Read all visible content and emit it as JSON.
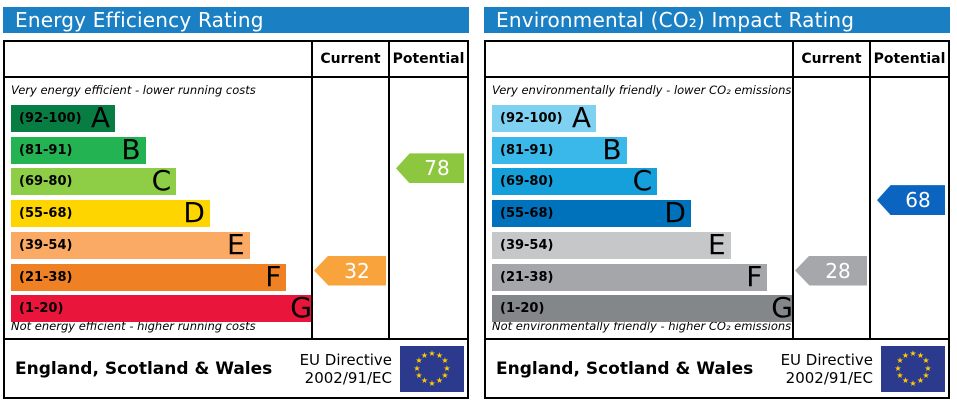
{
  "colors": {
    "header_bg": "#1b7fc4",
    "border": "#000000",
    "eu_flag_bg": "#2b3a8c",
    "eu_star": "#ffcc00",
    "arrow_text": "#ffffff"
  },
  "chart_data": [
    {
      "type": "bar",
      "title": "Energy Efficiency Rating",
      "column_headers": {
        "current": "Current",
        "potential": "Potential"
      },
      "top_note": "Very energy efficient - lower running costs",
      "bottom_note": "Not energy efficient - higher running costs",
      "bands": [
        {
          "letter": "A",
          "range_text": "(92-100)",
          "range": [
            92,
            100
          ],
          "color": "#077d44",
          "bar_width_pct": 34
        },
        {
          "letter": "B",
          "range_text": "(81-91)",
          "range": [
            81,
            91
          ],
          "color": "#24b352",
          "bar_width_pct": 44
        },
        {
          "letter": "C",
          "range_text": "(69-80)",
          "range": [
            69,
            80
          ],
          "color": "#8dce46",
          "bar_width_pct": 54
        },
        {
          "letter": "D",
          "range_text": "(55-68)",
          "range": [
            55,
            68
          ],
          "color": "#ffd500",
          "bar_width_pct": 65
        },
        {
          "letter": "E",
          "range_text": "(39-54)",
          "range": [
            39,
            54
          ],
          "color": "#fbaa65",
          "bar_width_pct": 78
        },
        {
          "letter": "F",
          "range_text": "(21-38)",
          "range": [
            21,
            38
          ],
          "color": "#ef8023",
          "bar_width_pct": 90
        },
        {
          "letter": "G",
          "range_text": "(1-20)",
          "range": [
            1,
            20
          ],
          "color": "#e9153b",
          "bar_width_pct": 100
        }
      ],
      "current": {
        "value": 32,
        "band": "F",
        "arrow_color": "#f8a33c"
      },
      "potential": {
        "value": 78,
        "band": "C",
        "arrow_color": "#8dc63f"
      },
      "footer": {
        "region": "England, Scotland & Wales",
        "directive_line1": "EU Directive",
        "directive_line2": "2002/91/EC"
      }
    },
    {
      "type": "bar",
      "title": "Environmental (CO₂) Impact Rating",
      "column_headers": {
        "current": "Current",
        "potential": "Potential"
      },
      "top_note": "Very environmentally friendly - lower CO₂ emissions",
      "bottom_note": "Not environmentally friendly - higher CO₂ emissions",
      "bands": [
        {
          "letter": "A",
          "range_text": "(92-100)",
          "range": [
            92,
            100
          ],
          "color": "#7fd1f1",
          "bar_width_pct": 34
        },
        {
          "letter": "B",
          "range_text": "(81-91)",
          "range": [
            81,
            91
          ],
          "color": "#39b8e9",
          "bar_width_pct": 44
        },
        {
          "letter": "C",
          "range_text": "(69-80)",
          "range": [
            69,
            80
          ],
          "color": "#15a0dc",
          "bar_width_pct": 54
        },
        {
          "letter": "D",
          "range_text": "(55-68)",
          "range": [
            55,
            68
          ],
          "color": "#0072bc",
          "bar_width_pct": 65
        },
        {
          "letter": "E",
          "range_text": "(39-54)",
          "range": [
            39,
            54
          ],
          "color": "#c6c7c9",
          "bar_width_pct": 78
        },
        {
          "letter": "F",
          "range_text": "(21-38)",
          "range": [
            21,
            38
          ],
          "color": "#a4a6a9",
          "bar_width_pct": 90
        },
        {
          "letter": "G",
          "range_text": "(1-20)",
          "range": [
            1,
            20
          ],
          "color": "#84878a",
          "bar_width_pct": 100
        }
      ],
      "current": {
        "value": 28,
        "band": "F",
        "arrow_color": "#a5a7aa"
      },
      "potential": {
        "value": 68,
        "band": "D",
        "arrow_color": "#0b64c0"
      },
      "footer": {
        "region": "England, Scotland & Wales",
        "directive_line1": "EU Directive",
        "directive_line2": "2002/91/EC"
      }
    }
  ]
}
